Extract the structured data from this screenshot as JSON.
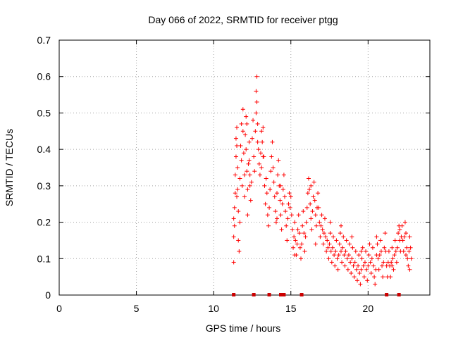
{
  "chart_data": {
    "type": "scatter",
    "title": "Day 066 of 2022, SRMTID for receiver ptgg",
    "xlabel": "GPS time / hours",
    "ylabel": "SRMTID / TECUs",
    "xlim": [
      0,
      24
    ],
    "ylim": [
      0,
      0.7
    ],
    "xticks": [
      0,
      5,
      10,
      15,
      20
    ],
    "yticks": [
      0,
      0.1,
      0.2,
      0.3,
      0.4,
      0.5,
      0.6,
      0.7
    ],
    "grid": true,
    "marker": "+",
    "color": "#ff0000",
    "series": [
      {
        "name": "SRMTID",
        "points": [
          [
            11.3,
            0.09
          ],
          [
            11.3,
            0.16
          ],
          [
            11.3,
            0.21
          ],
          [
            11.35,
            0.19
          ],
          [
            11.35,
            0.24
          ],
          [
            11.4,
            0.28
          ],
          [
            11.4,
            0.33
          ],
          [
            11.45,
            0.38
          ],
          [
            11.45,
            0.43
          ],
          [
            11.5,
            0.46
          ],
          [
            11.5,
            0.41
          ],
          [
            11.55,
            0.35
          ],
          [
            11.55,
            0.29
          ],
          [
            11.6,
            0.23
          ],
          [
            11.6,
            0.15
          ],
          [
            11.65,
            0.12
          ],
          [
            11.7,
            0.2
          ],
          [
            11.7,
            0.32
          ],
          [
            11.75,
            0.41
          ],
          [
            11.8,
            0.47
          ],
          [
            11.8,
            0.37
          ],
          [
            11.85,
            0.3
          ],
          [
            11.9,
            0.51
          ],
          [
            11.9,
            0.45
          ],
          [
            11.95,
            0.39
          ],
          [
            12.0,
            0.33
          ],
          [
            12.0,
            0.27
          ],
          [
            12.05,
            0.44
          ],
          [
            12.1,
            0.49
          ],
          [
            12.1,
            0.4
          ],
          [
            12.15,
            0.34
          ],
          [
            12.2,
            0.29
          ],
          [
            12.2,
            0.22
          ],
          [
            12.25,
            0.36
          ],
          [
            12.3,
            0.42
          ],
          [
            12.3,
            0.37
          ],
          [
            12.35,
            0.3
          ],
          [
            12.4,
            0.26
          ],
          [
            12.45,
            0.31
          ],
          [
            12.5,
            0.43
          ],
          [
            12.55,
            0.48
          ],
          [
            12.6,
            0.38
          ],
          [
            12.65,
            0.34
          ],
          [
            12.7,
            0.45
          ],
          [
            12.75,
            0.5
          ],
          [
            12.75,
            0.56
          ],
          [
            12.8,
            0.6
          ],
          [
            12.8,
            0.53
          ],
          [
            12.85,
            0.47
          ],
          [
            12.9,
            0.4
          ],
          [
            12.95,
            0.36
          ],
          [
            13.0,
            0.33
          ],
          [
            13.05,
            0.39
          ],
          [
            13.1,
            0.35
          ],
          [
            13.15,
            0.42
          ],
          [
            13.2,
            0.46
          ],
          [
            13.25,
            0.38
          ],
          [
            13.3,
            0.3
          ],
          [
            13.35,
            0.25
          ],
          [
            13.4,
            0.32
          ],
          [
            13.45,
            0.28
          ],
          [
            13.5,
            0.22
          ],
          [
            13.55,
            0.19
          ],
          [
            13.6,
            0.24
          ],
          [
            13.65,
            0.29
          ],
          [
            13.7,
            0.34
          ],
          [
            13.75,
            0.38
          ],
          [
            13.8,
            0.42
          ],
          [
            13.85,
            0.35
          ],
          [
            13.9,
            0.31
          ],
          [
            13.95,
            0.27
          ],
          [
            14.0,
            0.23
          ],
          [
            14.05,
            0.2
          ],
          [
            14.1,
            0.28
          ],
          [
            14.15,
            0.33
          ],
          [
            14.2,
            0.37
          ],
          [
            14.25,
            0.3
          ],
          [
            14.3,
            0.26
          ],
          [
            14.35,
            0.22
          ],
          [
            14.4,
            0.18
          ],
          [
            14.45,
            0.25
          ],
          [
            14.5,
            0.29
          ],
          [
            14.55,
            0.33
          ],
          [
            14.6,
            0.27
          ],
          [
            14.65,
            0.23
          ],
          [
            14.7,
            0.19
          ],
          [
            14.75,
            0.15
          ],
          [
            14.8,
            0.21
          ],
          [
            14.85,
            0.25
          ],
          [
            14.9,
            0.28
          ],
          [
            14.95,
            0.24
          ],
          [
            15.0,
            0.27
          ],
          [
            15.05,
            0.22
          ],
          [
            15.1,
            0.18
          ],
          [
            15.15,
            0.13
          ],
          [
            15.2,
            0.16
          ],
          [
            15.25,
            0.2
          ],
          [
            15.3,
            0.15
          ],
          [
            15.35,
            0.11
          ],
          [
            15.4,
            0.14
          ],
          [
            15.45,
            0.18
          ],
          [
            15.5,
            0.22
          ],
          [
            15.55,
            0.17
          ],
          [
            15.6,
            0.13
          ],
          [
            15.65,
            0.1
          ],
          [
            15.7,
            0.14
          ],
          [
            15.75,
            0.19
          ],
          [
            15.8,
            0.23
          ],
          [
            15.85,
            0.17
          ],
          [
            15.9,
            0.12
          ],
          [
            15.95,
            0.16
          ],
          [
            16.0,
            0.2
          ],
          [
            16.05,
            0.24
          ],
          [
            16.1,
            0.28
          ],
          [
            16.15,
            0.32
          ],
          [
            16.2,
            0.29
          ],
          [
            16.25,
            0.25
          ],
          [
            16.3,
            0.21
          ],
          [
            16.35,
            0.18
          ],
          [
            16.4,
            0.23
          ],
          [
            16.45,
            0.27
          ],
          [
            16.5,
            0.31
          ],
          [
            16.55,
            0.26
          ],
          [
            16.6,
            0.22
          ],
          [
            16.65,
            0.19
          ],
          [
            16.7,
            0.24
          ],
          [
            16.75,
            0.28
          ],
          [
            16.8,
            0.24
          ],
          [
            16.85,
            0.2
          ],
          [
            16.9,
            0.16
          ],
          [
            16.95,
            0.19
          ],
          [
            17.0,
            0.22
          ],
          [
            17.05,
            0.18
          ],
          [
            17.1,
            0.14
          ],
          [
            17.15,
            0.17
          ],
          [
            17.2,
            0.21
          ],
          [
            17.25,
            0.16
          ],
          [
            17.3,
            0.12
          ],
          [
            17.35,
            0.15
          ],
          [
            17.4,
            0.13
          ],
          [
            17.45,
            0.1
          ],
          [
            17.5,
            0.14
          ],
          [
            17.55,
            0.17
          ],
          [
            17.6,
            0.12
          ],
          [
            17.65,
            0.09
          ],
          [
            17.7,
            0.13
          ],
          [
            17.75,
            0.16
          ],
          [
            17.8,
            0.11
          ],
          [
            17.85,
            0.08
          ],
          [
            17.9,
            0.12
          ],
          [
            17.95,
            0.15
          ],
          [
            18.0,
            0.1
          ],
          [
            18.05,
            0.07
          ],
          [
            18.1,
            0.11
          ],
          [
            18.15,
            0.14
          ],
          [
            18.2,
            0.17
          ],
          [
            18.25,
            0.12
          ],
          [
            18.3,
            0.09
          ],
          [
            18.35,
            0.13
          ],
          [
            18.4,
            0.16
          ],
          [
            18.45,
            0.11
          ],
          [
            18.5,
            0.08
          ],
          [
            18.55,
            0.12
          ],
          [
            18.6,
            0.15
          ],
          [
            18.65,
            0.1
          ],
          [
            18.7,
            0.07
          ],
          [
            18.75,
            0.11
          ],
          [
            18.8,
            0.14
          ],
          [
            18.85,
            0.09
          ],
          [
            18.9,
            0.06
          ],
          [
            18.95,
            0.1
          ],
          [
            19.0,
            0.13
          ],
          [
            19.05,
            0.08
          ],
          [
            19.1,
            0.05
          ],
          [
            19.15,
            0.09
          ],
          [
            19.2,
            0.12
          ],
          [
            19.25,
            0.07
          ],
          [
            19.3,
            0.04
          ],
          [
            19.35,
            0.08
          ],
          [
            19.4,
            0.11
          ],
          [
            19.45,
            0.06
          ],
          [
            19.5,
            0.03
          ],
          [
            19.55,
            0.07
          ],
          [
            19.6,
            0.1
          ],
          [
            19.65,
            0.13
          ],
          [
            19.7,
            0.08
          ],
          [
            19.75,
            0.05
          ],
          [
            19.8,
            0.09
          ],
          [
            19.85,
            0.12
          ],
          [
            19.9,
            0.07
          ],
          [
            19.95,
            0.04
          ],
          [
            20.0,
            0.08
          ],
          [
            20.05,
            0.11
          ],
          [
            20.1,
            0.14
          ],
          [
            20.15,
            0.09
          ],
          [
            20.2,
            0.06
          ],
          [
            20.25,
            0.1
          ],
          [
            20.3,
            0.13
          ],
          [
            20.35,
            0.08
          ],
          [
            20.4,
            0.05
          ],
          [
            20.45,
            0.03
          ],
          [
            20.5,
            0.07
          ],
          [
            20.55,
            0.11
          ],
          [
            20.6,
            0.14
          ],
          [
            20.65,
            0.1
          ],
          [
            20.7,
            0.07
          ],
          [
            20.75,
            0.11
          ],
          [
            20.8,
            0.15
          ],
          [
            20.85,
            0.12
          ],
          [
            20.9,
            0.08
          ],
          [
            20.95,
            0.05
          ],
          [
            21.0,
            0.09
          ],
          [
            21.05,
            0.13
          ],
          [
            21.1,
            0.17
          ],
          [
            21.15,
            0.12
          ],
          [
            21.2,
            0.08
          ],
          [
            21.25,
            0.05
          ],
          [
            21.3,
            0.09
          ],
          [
            21.35,
            0.12
          ],
          [
            21.4,
            0.08
          ],
          [
            21.45,
            0.05
          ],
          [
            21.5,
            0.09
          ],
          [
            21.55,
            0.13
          ],
          [
            21.6,
            0.1
          ],
          [
            21.65,
            0.07
          ],
          [
            21.7,
            0.11
          ],
          [
            21.75,
            0.15
          ],
          [
            21.8,
            0.12
          ],
          [
            21.85,
            0.09
          ],
          [
            21.9,
            0.13
          ],
          [
            21.95,
            0.17
          ],
          [
            22.0,
            0.19
          ],
          [
            22.05,
            0.15
          ],
          [
            22.1,
            0.12
          ],
          [
            22.15,
            0.16
          ],
          [
            22.2,
            0.19
          ],
          [
            22.25,
            0.15
          ],
          [
            22.3,
            0.12
          ],
          [
            22.35,
            0.16
          ],
          [
            22.4,
            0.2
          ],
          [
            22.45,
            0.17
          ],
          [
            22.5,
            0.13
          ],
          [
            22.55,
            0.1
          ],
          [
            22.6,
            0.08
          ],
          [
            22.65,
            0.12
          ],
          [
            22.7,
            0.16
          ],
          [
            22.75,
            0.13
          ],
          [
            22.8,
            0.1
          ],
          [
            11.5,
            0.27
          ],
          [
            12.15,
            0.47
          ],
          [
            12.35,
            0.33
          ],
          [
            12.85,
            0.42
          ],
          [
            13.1,
            0.45
          ],
          [
            13.2,
            0.38
          ],
          [
            14.1,
            0.21
          ],
          [
            14.35,
            0.3
          ],
          [
            15.25,
            0.11
          ],
          [
            16.3,
            0.3
          ],
          [
            16.6,
            0.14
          ],
          [
            17.55,
            0.2
          ],
          [
            18.25,
            0.19
          ],
          [
            18.95,
            0.16
          ],
          [
            19.55,
            0.12
          ],
          [
            20.55,
            0.16
          ],
          [
            21.55,
            0.08
          ],
          [
            22.05,
            0.18
          ],
          [
            22.45,
            0.11
          ],
          [
            22.7,
            0.07
          ]
        ]
      }
    ],
    "baseline_markers": {
      "color": "#cc0000",
      "x": [
        11.3,
        12.6,
        13.6,
        14.35,
        14.45,
        14.55,
        15.7,
        21.2,
        22.0
      ]
    }
  }
}
